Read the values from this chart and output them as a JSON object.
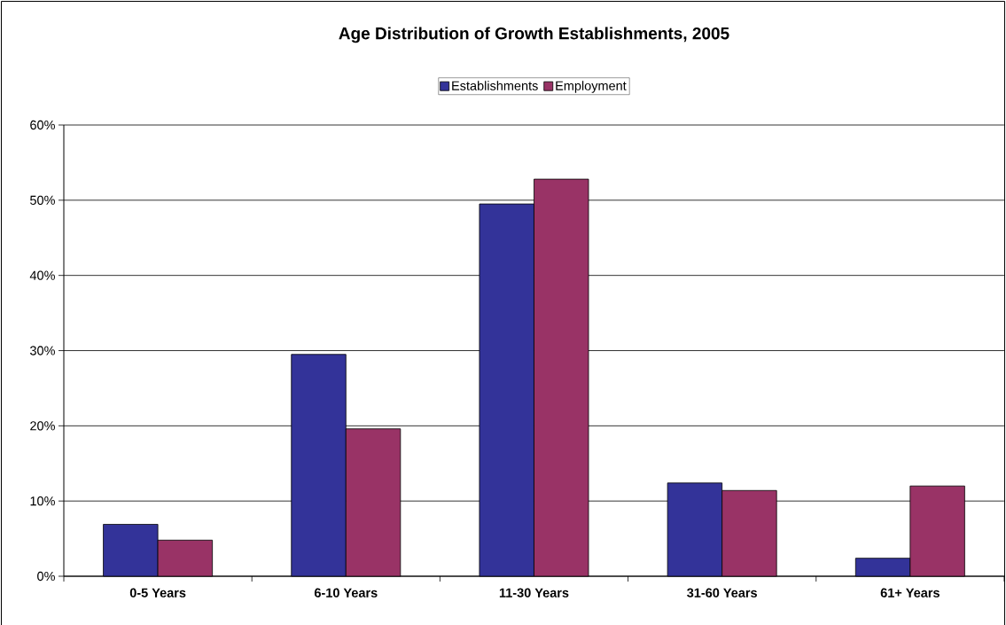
{
  "chart_data": {
    "type": "bar",
    "title": "Age Distribution of Growth Establishments, 2005",
    "categories": [
      "0-5 Years",
      "6-10 Years",
      "11-30 Years",
      "31-60 Years",
      "61+ Years"
    ],
    "series": [
      {
        "name": "Establishments",
        "color": "#333399",
        "values": [
          6.9,
          29.5,
          49.5,
          12.4,
          2.4
        ]
      },
      {
        "name": "Employment",
        "color": "#993366",
        "values": [
          4.8,
          19.6,
          52.8,
          11.4,
          12.0
        ]
      }
    ],
    "ylim": [
      0,
      60
    ],
    "yticks": [
      {
        "value": 0,
        "label": "0%"
      },
      {
        "value": 10,
        "label": "10%"
      },
      {
        "value": 20,
        "label": "20%"
      },
      {
        "value": 30,
        "label": "30%"
      },
      {
        "value": 40,
        "label": "40%"
      },
      {
        "value": 50,
        "label": "50%"
      },
      {
        "value": 60,
        "label": "60%"
      }
    ],
    "grid": "y",
    "legend": "top"
  }
}
